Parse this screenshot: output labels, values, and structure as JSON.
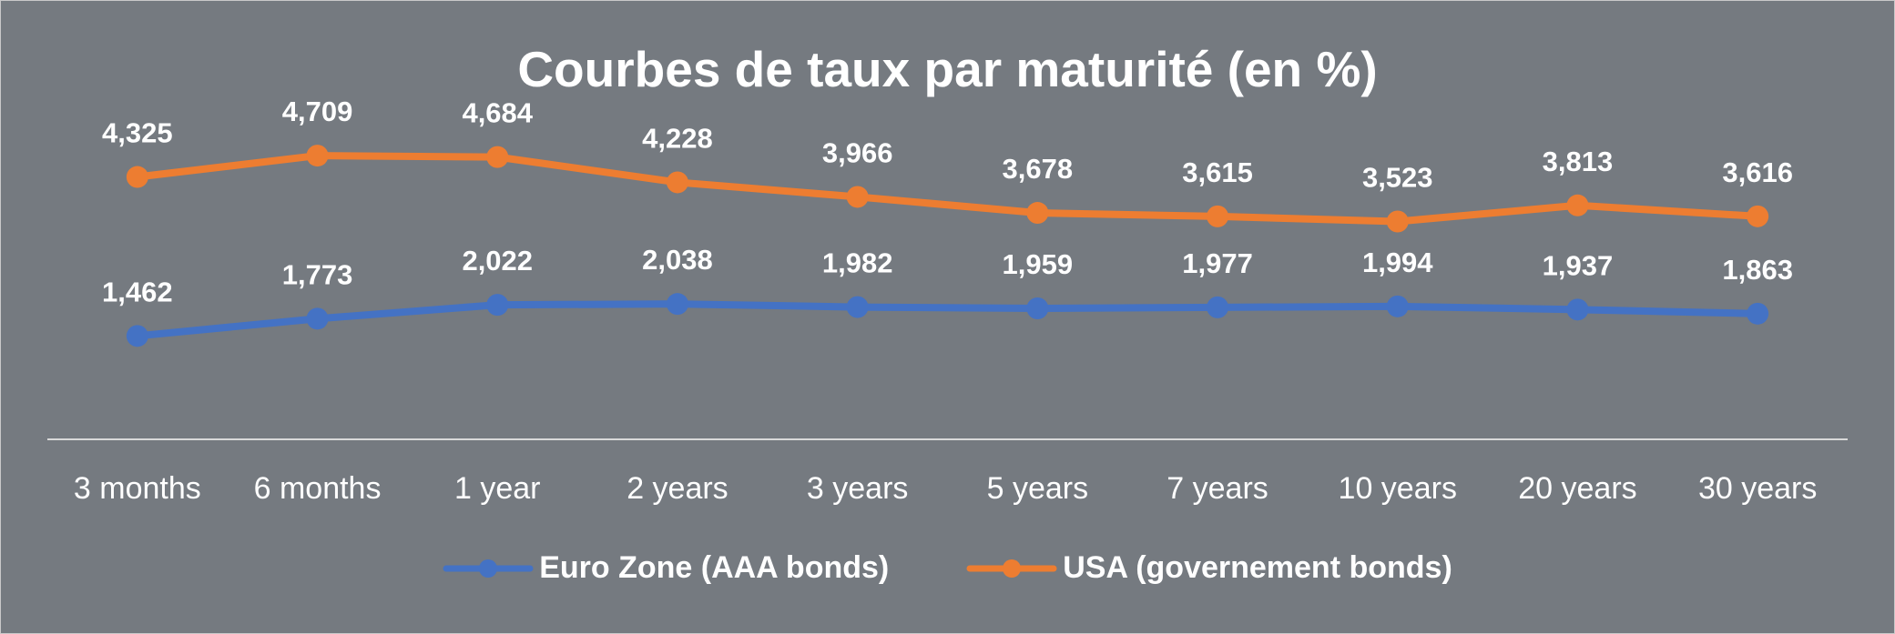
{
  "chart_data": {
    "type": "line",
    "title": "Courbes de taux par maturité (en %)",
    "categories": [
      "3 months",
      "6 months",
      "1 year",
      "2 years",
      "3 years",
      "5 years",
      "7 years",
      "10 years",
      "20 years",
      "30 years"
    ],
    "series": [
      {
        "name": "Euro Zone (AAA bonds)",
        "color": "#4472c4",
        "values": [
          1.462,
          1.773,
          2.022,
          2.038,
          1.982,
          1.959,
          1.977,
          1.994,
          1.937,
          1.863
        ],
        "labels": [
          "1,462",
          "1,773",
          "2,022",
          "2,038",
          "1,982",
          "1,959",
          "1,977",
          "1,994",
          "1,937",
          "1,863"
        ]
      },
      {
        "name": "USA (governement bonds)",
        "color": "#ed7d31",
        "values": [
          4.325,
          4.709,
          4.684,
          4.228,
          3.966,
          3.678,
          3.615,
          3.523,
          3.813,
          3.616
        ],
        "labels": [
          "4,325",
          "4,709",
          "4,684",
          "4,228",
          "3,966",
          "3,678",
          "3,615",
          "3,523",
          "3,813",
          "3,616"
        ]
      }
    ],
    "xlabel": "",
    "ylabel": "",
    "ylim": [
      -0.4,
      5.3
    ],
    "grid": false,
    "legend_position": "bottom",
    "colors": {
      "background": "#757a80",
      "text": "#ffffff",
      "axis": "#d9d9d9"
    }
  }
}
